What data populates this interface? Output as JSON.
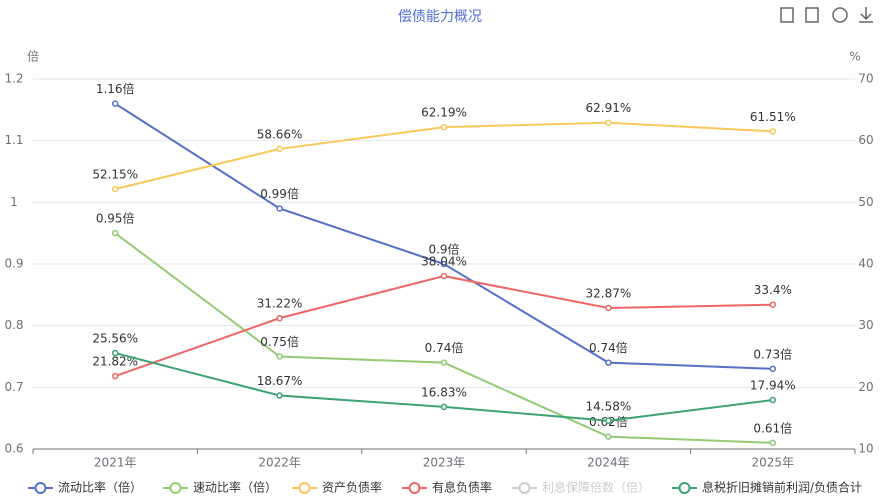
{
  "chart_data": {
    "type": "line",
    "title": "偿债能力概况",
    "y_unit": "倍",
    "y2_unit": "%",
    "categories": [
      "2021年",
      "2022年",
      "2023年",
      "2024年",
      "2025年"
    ],
    "ylim": [
      0.6,
      1.2
    ],
    "yticks": [
      0.6,
      0.7,
      0.8,
      0.9,
      1,
      1.1,
      1.2
    ],
    "y2lim": [
      10,
      70
    ],
    "y2ticks": [
      10,
      20,
      30,
      40,
      50,
      60,
      70
    ],
    "grid": true,
    "legend": "bottom",
    "series": [
      {
        "name": "流动比率（倍）",
        "color": "#5470c6",
        "values": [
          1.16,
          0.99,
          0.9,
          0.74,
          0.73
        ],
        "value_labels": [
          "1.16倍",
          "0.99倍",
          "0.9倍",
          "0.74倍",
          "0.73倍"
        ]
      },
      {
        "name": "速动比率（倍）",
        "color": "#91cc75",
        "values": [
          0.95,
          0.75,
          0.74,
          0.62,
          0.61
        ],
        "value_labels": [
          "0.95倍",
          "0.75倍",
          "0.74倍",
          "0.62倍",
          "0.61倍"
        ]
      },
      {
        "name": "资产负债率",
        "color": "#fac858",
        "axis": "y2",
        "values": [
          52.15,
          58.66,
          62.19,
          62.91,
          61.51
        ],
        "value_labels": [
          "52.15%",
          "58.66%",
          "62.19%",
          "62.91%",
          "61.51%"
        ]
      },
      {
        "name": "有息负债率",
        "color": "#ee6666",
        "axis": "y2",
        "values": [
          21.82,
          31.22,
          38.04,
          32.87,
          33.4
        ],
        "value_labels": [
          "21.82%",
          "31.22%",
          "38.04%",
          "32.87%",
          "33.4%"
        ]
      },
      {
        "name": "利息保障倍数（倍）",
        "color": "#cccccc",
        "hidden": true,
        "values": [
          null,
          null,
          null,
          null,
          null
        ]
      },
      {
        "name": "息税折旧摊销前利润/负债合计",
        "color": "#3ba272",
        "axis": "y2",
        "values": [
          25.56,
          18.67,
          16.83,
          14.58,
          17.94
        ],
        "value_labels": [
          "25.56%",
          "18.67%",
          "16.83%",
          "14.58%",
          "17.94%"
        ]
      }
    ]
  }
}
